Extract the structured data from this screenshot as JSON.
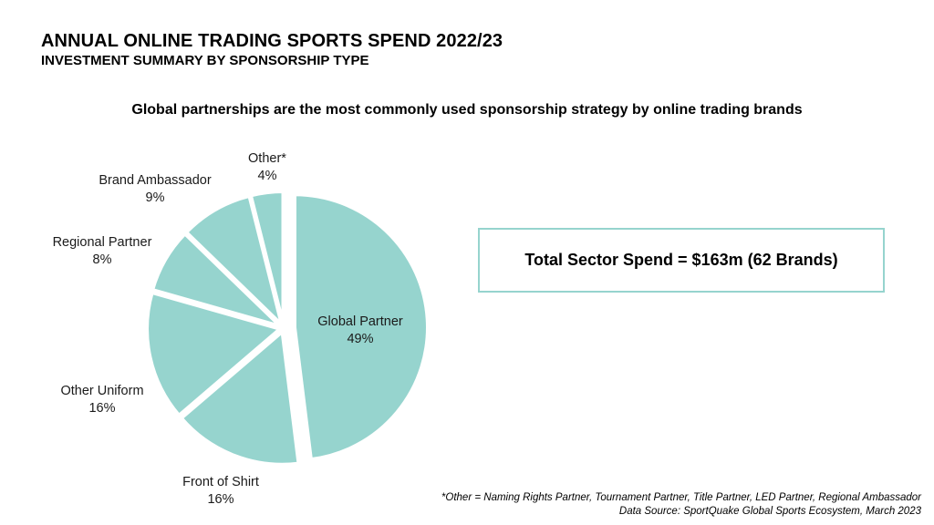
{
  "header": {
    "title": "ANNUAL ONLINE TRADING SPORTS SPEND 2022/23",
    "subtitle": "INVESTMENT SUMMARY BY SPONSORSHIP TYPE",
    "headline": "Global partnerships are the most commonly used sponsorship strategy by online trading brands"
  },
  "total_box": {
    "text": "Total Sector Spend = $163m (62 Brands)"
  },
  "footnote": {
    "line1": "*Other = Naming Rights Partner, Tournament Partner, Title Partner, LED Partner, Regional Ambassador",
    "line2": "Data Source: SportQuake Global Sports Ecosystem, March 2023"
  },
  "colors": {
    "slice": "#96d4ce",
    "border": "#96d4ce"
  },
  "chart_data": {
    "type": "pie",
    "slices": [
      {
        "label": "Global Partner",
        "value": 49,
        "value_label": "49%"
      },
      {
        "label": "Front of Shirt",
        "value": 16,
        "value_label": "16%"
      },
      {
        "label": "Other Uniform",
        "value": 16,
        "value_label": "16%"
      },
      {
        "label": "Regional Partner",
        "value": 8,
        "value_label": "8%"
      },
      {
        "label": "Brand Ambassador",
        "value": 9,
        "value_label": "9%"
      },
      {
        "label": "Other*",
        "value": 4,
        "value_label": "4%"
      }
    ]
  }
}
